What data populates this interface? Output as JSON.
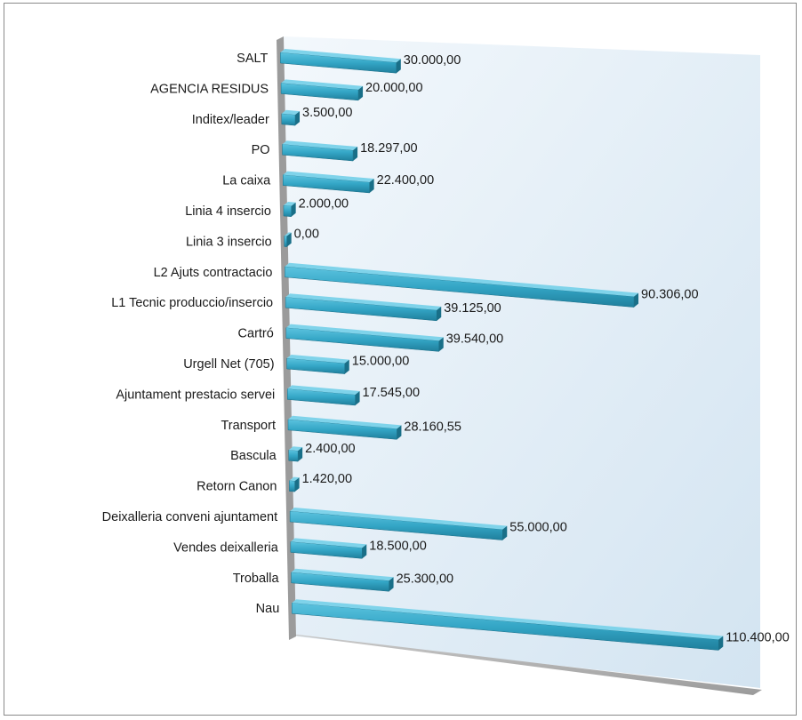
{
  "chart_data": {
    "type": "bar",
    "orientation": "horizontal",
    "style": "3d-perspective",
    "title": "",
    "xlabel": "",
    "ylabel": "",
    "grid": false,
    "legend": "none",
    "bar_color": "#3aa9c7",
    "wall_color": "#dceaf5",
    "categories": [
      "SALT",
      "AGENCIA RESIDUS",
      "Inditex/leader",
      "PO",
      "La caixa",
      "Linia 4 insercio",
      "Linia 3 insercio",
      "L2 Ajuts contractacio",
      "L1 Tecnic produccio/insercio",
      "Cartró",
      "Urgell Net (705)",
      "Ajuntament prestacio servei",
      "Transport",
      "Bascula",
      "Retorn Canon",
      "Deixalleria conveni ajuntament",
      "Vendes deixalleria",
      "Troballa",
      "Nau"
    ],
    "values": [
      30000,
      20000,
      3500,
      18297,
      22400,
      2000,
      0,
      90306,
      39125,
      39540,
      15000,
      17545,
      28160.55,
      2400,
      1420,
      55000,
      18500,
      25300,
      110400
    ],
    "value_labels": [
      "30.000,00",
      "20.000,00",
      "3.500,00",
      "18.297,00",
      "22.400,00",
      "2.000,00",
      "0,00",
      "90.306,00",
      "39.125,00",
      "39.540,00",
      "15.000,00",
      "17.545,00",
      "28.160,55",
      "2.400,00",
      "1.420,00",
      "55.000,00",
      "18.500,00",
      "25.300,00",
      "110.400,00"
    ]
  }
}
